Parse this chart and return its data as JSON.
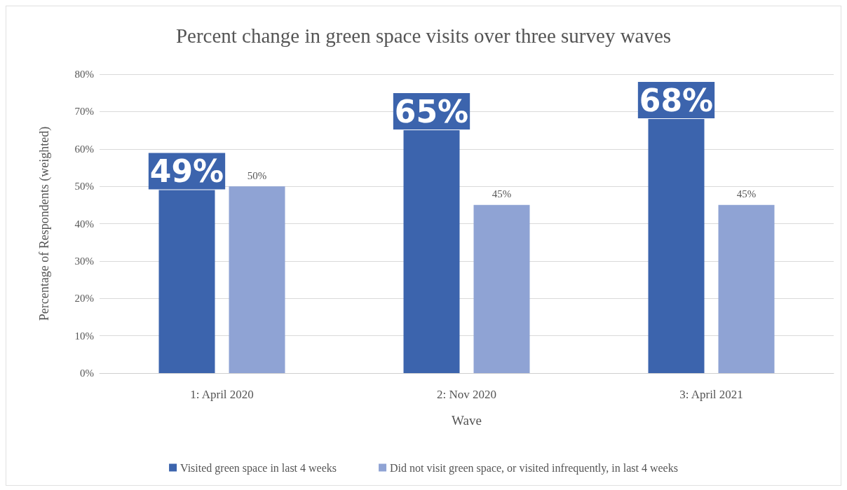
{
  "chart_data": {
    "type": "bar",
    "title": "Percent change in green space visits over three survey waves",
    "xlabel": "Wave",
    "ylabel": "Percentage of Respondents (weighted)",
    "categories": [
      "1: April 2020",
      "2: Nov 2020",
      "3: April 2021"
    ],
    "series": [
      {
        "name": "Visited green space in last 4 weeks",
        "color": "#3c64ad",
        "values": [
          49,
          65,
          68
        ],
        "value_labels": [
          "49%",
          "65%",
          "68%"
        ]
      },
      {
        "name": "Did not visit green space, or visited infrequently, in last 4 weeks",
        "color": "#8fa3d4",
        "values": [
          50,
          45,
          45
        ],
        "value_labels": [
          "50%",
          "45%",
          "45%"
        ]
      }
    ],
    "ylim": [
      0,
      80
    ],
    "yticks": [
      {
        "value": 0,
        "label": "0%"
      },
      {
        "value": 10,
        "label": "10%"
      },
      {
        "value": 20,
        "label": "20%"
      },
      {
        "value": 30,
        "label": "30%"
      },
      {
        "value": 40,
        "label": "40%"
      },
      {
        "value": 50,
        "label": "50%"
      },
      {
        "value": 60,
        "label": "60%"
      },
      {
        "value": 70,
        "label": "70%"
      },
      {
        "value": 80,
        "label": "80%"
      }
    ],
    "grid": "y",
    "legend": "bottom"
  }
}
